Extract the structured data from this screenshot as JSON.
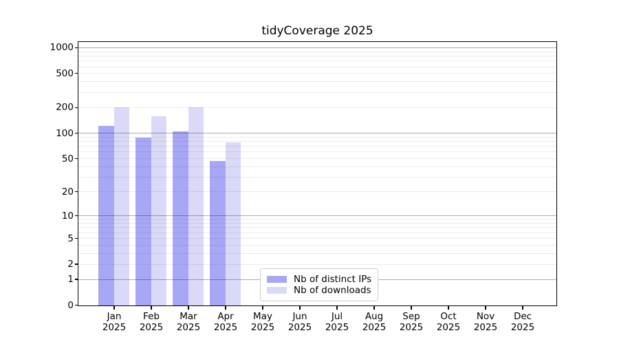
{
  "chart_data": {
    "type": "bar",
    "title": "tidyCoverage 2025",
    "y_scale": "log1p",
    "grid": "both-major-and-minor",
    "legend_position": "lower-center",
    "y_ticks": [
      0,
      1,
      2,
      5,
      10,
      20,
      50,
      100,
      200,
      500,
      1000
    ],
    "ylim": [
      0,
      1185
    ],
    "categories": [
      {
        "month": "Jan",
        "year": "2025"
      },
      {
        "month": "Feb",
        "year": "2025"
      },
      {
        "month": "Mar",
        "year": "2025"
      },
      {
        "month": "Apr",
        "year": "2025"
      },
      {
        "month": "May",
        "year": "2025"
      },
      {
        "month": "Jun",
        "year": "2025"
      },
      {
        "month": "Jul",
        "year": "2025"
      },
      {
        "month": "Aug",
        "year": "2025"
      },
      {
        "month": "Sep",
        "year": "2025"
      },
      {
        "month": "Oct",
        "year": "2025"
      },
      {
        "month": "Nov",
        "year": "2025"
      },
      {
        "month": "Dec",
        "year": "2025"
      }
    ],
    "series": [
      {
        "name": "Nb of distinct IPs",
        "color": "#a7a7f6",
        "values": [
          123,
          90,
          105,
          47,
          null,
          null,
          null,
          null,
          null,
          null,
          null,
          null
        ]
      },
      {
        "name": "Nb of downloads",
        "color": "#dadaf8",
        "values": [
          205,
          160,
          205,
          78,
          null,
          null,
          null,
          null,
          null,
          null,
          null,
          null
        ]
      }
    ]
  }
}
